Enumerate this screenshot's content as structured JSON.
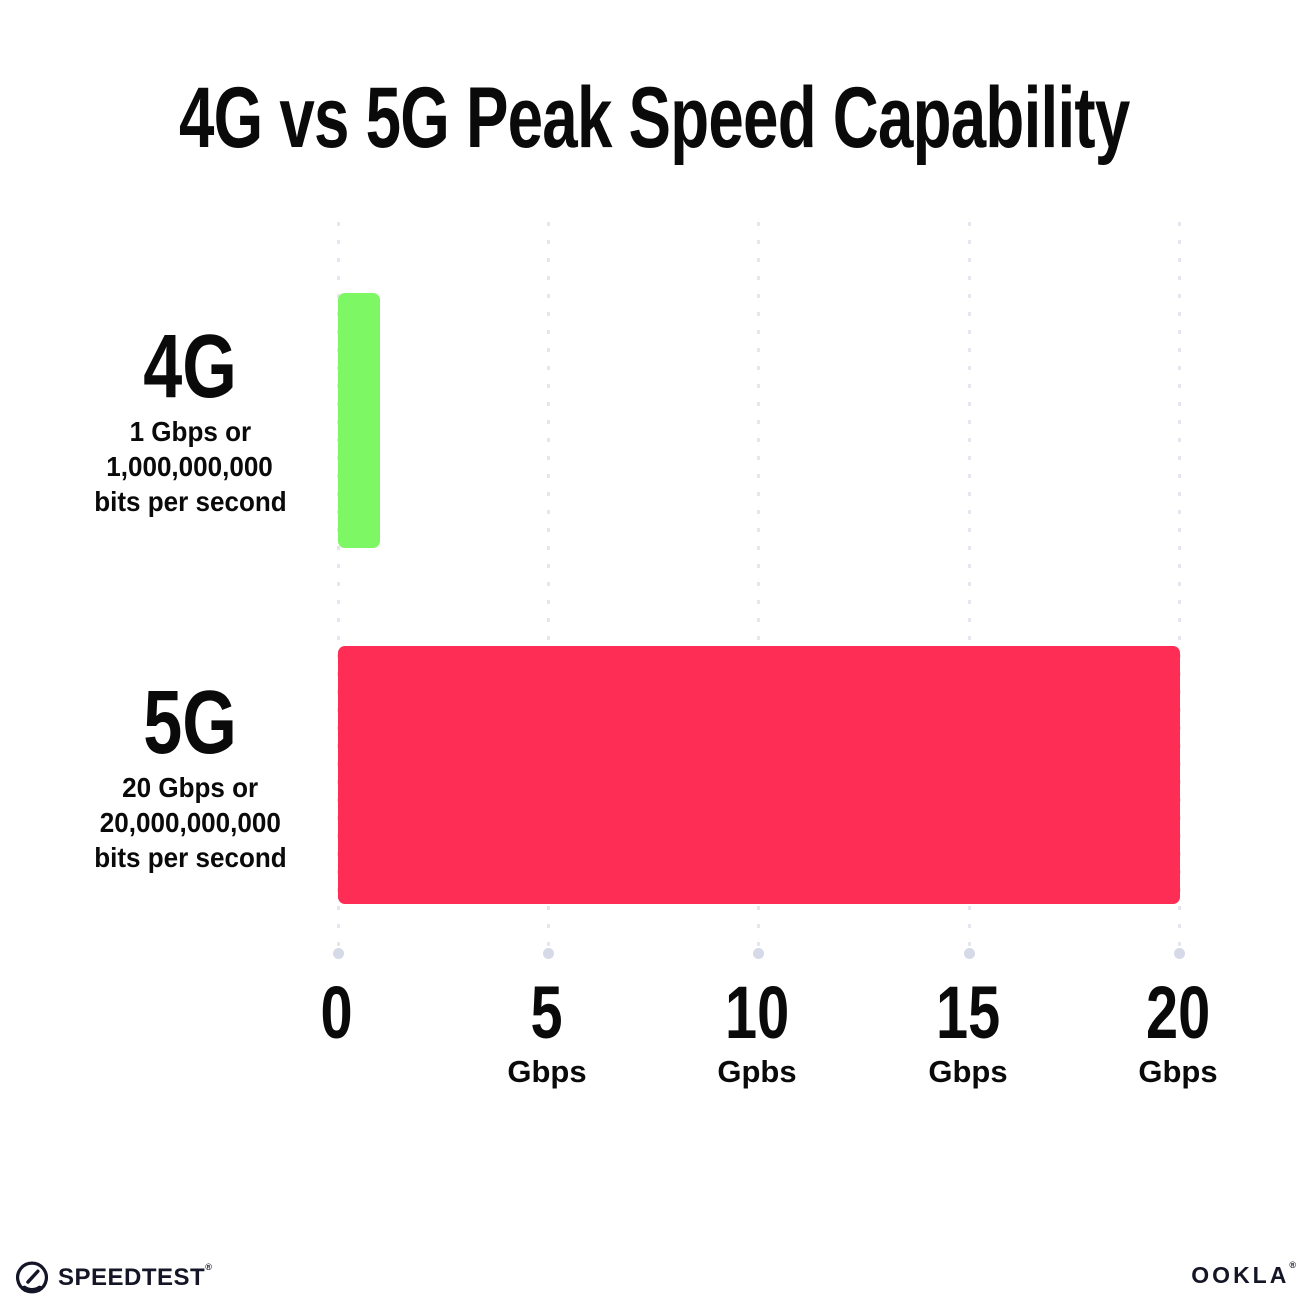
{
  "title": "4G vs 5G Peak Speed Capability",
  "chart_data": {
    "type": "bar",
    "orientation": "horizontal",
    "title": "4G vs 5G Peak Speed Capability",
    "categories": [
      "4G",
      "5G"
    ],
    "values": [
      1,
      20
    ],
    "value_unit": "Gbps",
    "xlim": [
      0,
      20
    ],
    "x_tick_values": [
      0,
      5,
      10,
      15,
      20
    ],
    "grid": "dotted vertical gridlines, light gray",
    "legend": "none",
    "bar_colors": [
      "#7df764",
      "#fd2d55"
    ],
    "annotations": [
      "4G: 1 Gbps or 1,000,000,000 bits per second",
      "5G: 20 Gbps or 20,000,000,000 bits per second"
    ]
  },
  "rows": [
    {
      "label": "4G",
      "sub_lines": [
        "1 Gbps or",
        "1,000,000,000",
        "bits per second"
      ],
      "color": "#7df764"
    },
    {
      "label": "5G",
      "sub_lines": [
        "20 Gbps or",
        "20,000,000,000",
        "bits per second"
      ],
      "color": "#fd2d55"
    }
  ],
  "axis": {
    "ticks": [
      {
        "value": "0",
        "unit": ""
      },
      {
        "value": "5",
        "unit": "Gbps"
      },
      {
        "value": "10",
        "unit": "Gpbs"
      },
      {
        "value": "15",
        "unit": "Gbps"
      },
      {
        "value": "20",
        "unit": "Gbps"
      }
    ]
  },
  "footer": {
    "speedtest_label": "SPEEDTEST",
    "speedtest_tm": "®",
    "ookla_label": "OOKLA",
    "ookla_tm": "®"
  },
  "colors": {
    "bar_green": "#7df764",
    "bar_pink": "#fd2d55",
    "gridline_dot": "#e4e6f0",
    "gridline_end_dot": "#d6dae8",
    "text": "#0a0a0a",
    "logo_ink": "#141526",
    "background": "#ffffff"
  }
}
